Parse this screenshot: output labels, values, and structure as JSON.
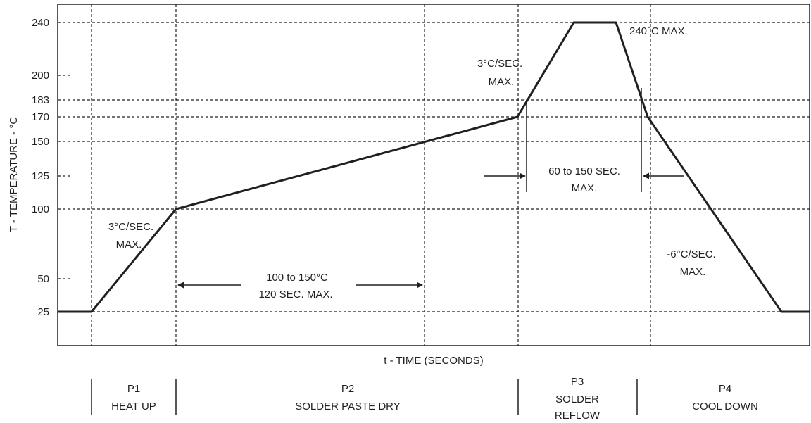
{
  "chart_data": {
    "type": "line",
    "title": "",
    "xlabel": "t - TIME (SECONDS)",
    "ylabel": "T - TEMPERATURE - °C",
    "yticks": [
      "25",
      "50",
      "100",
      "125",
      "150",
      "170",
      "183",
      "200",
      "240"
    ],
    "ytick_values": [
      25,
      50,
      100,
      125,
      150,
      170,
      183,
      200,
      240
    ],
    "ylim": [
      0,
      245
    ],
    "grid": true,
    "legend": "none",
    "series": [
      {
        "profile_points": [
          {
            "t": 0,
            "T": 25
          },
          {
            "t": 25,
            "T": 25
          },
          {
            "t": 50,
            "T": 100
          },
          {
            "t": 150,
            "T": 170
          },
          {
            "t": 165,
            "T": 240
          },
          {
            "t": 180,
            "T": 240
          },
          {
            "t": 190,
            "T": 170
          },
          {
            "t": 220,
            "T": 25
          },
          {
            "t": 230,
            "T": 25
          }
        ]
      }
    ],
    "annotations": {
      "heat_rate_1": "3°C/SEC.",
      "heat_rate_1_max": "MAX.",
      "dry_range": "100 to 150°C",
      "dry_time": "120 SEC. MAX.",
      "heat_rate_2": "3°C/SEC.",
      "heat_rate_2_max": "MAX.",
      "peak": "240°C MAX.",
      "reflow_time": "60 to 150 SEC.",
      "reflow_time_max": "MAX.",
      "cool_rate": "-6°C/SEC.",
      "cool_rate_max": "MAX."
    },
    "phases": [
      {
        "code": "P1",
        "name": "HEAT UP"
      },
      {
        "code": "P2",
        "name": "SOLDER PASTE DRY"
      },
      {
        "code": "P3",
        "name": "SOLDER",
        "name2": "REFLOW"
      },
      {
        "code": "P4",
        "name": "COOL DOWN"
      }
    ]
  }
}
